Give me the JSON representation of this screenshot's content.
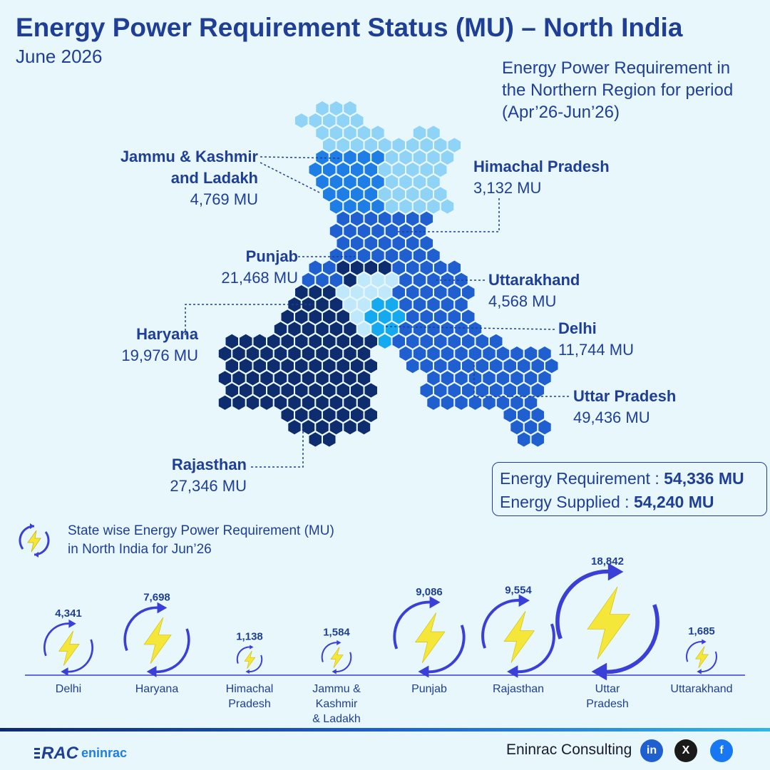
{
  "header": {
    "title": "Energy Power Requirement Status (MU) – North India",
    "subtitle": "June 2026"
  },
  "region_note": "Energy Power Requirement in the Northern Region for period (Apr’26-Jun’26)",
  "map_labels": {
    "jk_name_1": "Jammu & Kashmir",
    "jk_name_2": "and Ladakh",
    "jk_value": "4,769 MU",
    "hp_name": "Himachal Pradesh",
    "hp_value": "3,132 MU",
    "pb_name": "Punjab",
    "pb_value": "21,468 MU",
    "uk_name": "Uttarakhand",
    "uk_value": "4,568 MU",
    "hr_name": "Haryana",
    "hr_value": "19,976 MU",
    "dl_name": "Delhi",
    "dl_value": "11,744 MU",
    "up_name": "Uttar Pradesh",
    "up_value": "49,436 MU",
    "rj_name": "Rajasthan",
    "rj_value": "27,346 MU"
  },
  "colors": {
    "jk": "#1f7de6",
    "hp": "#8fd3f7",
    "pb": "#1f5fd0",
    "uk": "#1f5fd0",
    "hr": "#bfe8fa",
    "dl": "#15aaf0",
    "up": "#1f5fd0",
    "rj": "#0d2d6e",
    "ring": "#3a3fd8",
    "bolt": "#f5e63a"
  },
  "summary": {
    "req_label": "Energy Requirement : ",
    "req_value": "54,336 MU",
    "sup_label": "Energy Supplied : ",
    "sup_value": "54,240 MU"
  },
  "legend": {
    "line1": "State wise Energy Power Requirement (MU)",
    "line2": "in North India for Jun’26"
  },
  "chart_data": {
    "type": "bar",
    "title": "State wise Energy Power Requirement (MU) in North India for Jun’26",
    "categories": [
      "Delhi",
      "Haryana",
      "Himachal Pradesh",
      "Jammu & Kashmir & Ladakh",
      "Punjab",
      "Rajasthan",
      "Uttar Pradesh",
      "Uttarakhand"
    ],
    "category_lines": [
      [
        "Delhi"
      ],
      [
        "Haryana"
      ],
      [
        "Himachal",
        "Pradesh"
      ],
      [
        "Jammu &",
        "Kashmir",
        "& Ladakh"
      ],
      [
        "Punjab"
      ],
      [
        "Rajasthan"
      ],
      [
        "Uttar",
        "Pradesh"
      ],
      [
        "Uttarakhand"
      ]
    ],
    "values": [
      4341,
      7698,
      1138,
      1584,
      9086,
      9554,
      18842,
      1685
    ],
    "value_labels": [
      "4,341",
      "7,698",
      "1,138",
      "1,584",
      "9,086",
      "9,554",
      "18,842",
      "1,685"
    ]
  },
  "footer": {
    "brand": "Eninrac Consulting",
    "logo_text_1": "RAC",
    "logo_text_2": "eninrac",
    "social": [
      "in",
      "X",
      "f"
    ]
  }
}
